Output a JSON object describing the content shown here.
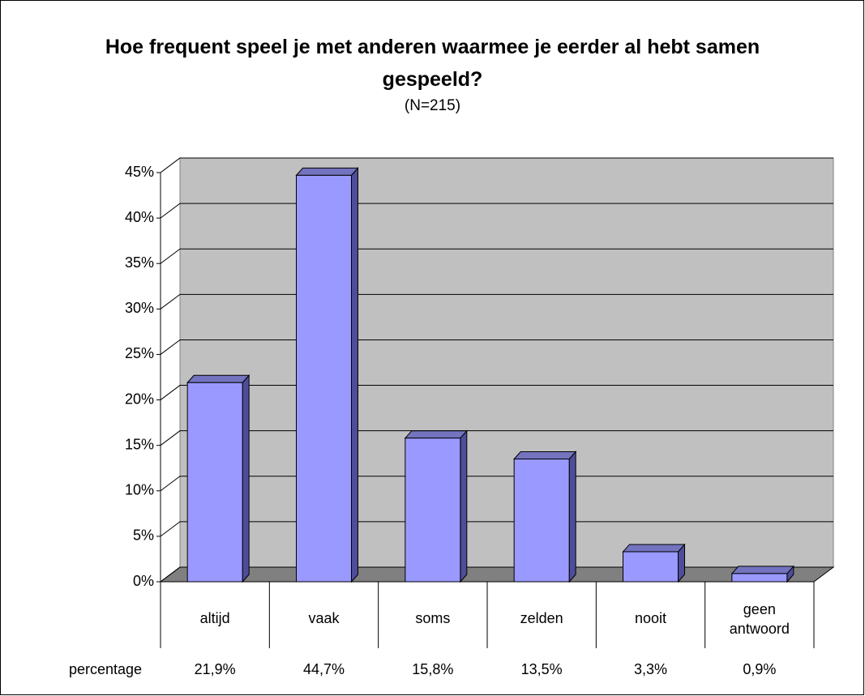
{
  "chart_data": {
    "type": "bar3d",
    "title": "Hoe frequent speel je met anderen waarmee je eerder al hebt samen gespeeld?",
    "subtitle": "(N=215)",
    "categories": [
      "altijd",
      "vaak",
      "soms",
      "zelden",
      "nooit",
      "geen antwoord"
    ],
    "series": [
      {
        "name": "percentage",
        "color": "#9999ff",
        "values": [
          21.9,
          44.7,
          15.8,
          13.5,
          3.3,
          0.9
        ],
        "value_labels": [
          "21,9%",
          "44,7%",
          "15,8%",
          "13,5%",
          "3,3%",
          "0,9%"
        ]
      }
    ],
    "ylim": [
      0,
      45
    ],
    "yticks": [
      {
        "value": 0,
        "label": "0%"
      },
      {
        "value": 5,
        "label": "5%"
      },
      {
        "value": 10,
        "label": "10%"
      },
      {
        "value": 15,
        "label": "15%"
      },
      {
        "value": 20,
        "label": "20%"
      },
      {
        "value": 25,
        "label": "25%"
      },
      {
        "value": 30,
        "label": "30%"
      },
      {
        "value": 35,
        "label": "35%"
      },
      {
        "value": 40,
        "label": "40%"
      },
      {
        "value": 45,
        "label": "45%"
      }
    ],
    "grid": true
  }
}
